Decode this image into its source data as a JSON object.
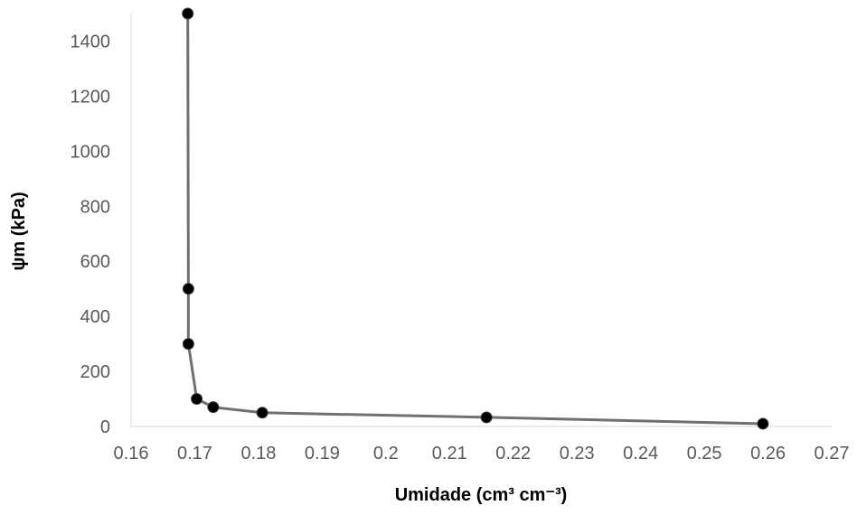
{
  "chart_data": {
    "type": "line",
    "title": "",
    "xlabel": "Umidade (cm³ cm⁻³)",
    "ylabel": "ψm (kPa)",
    "xlim": [
      0.16,
      0.27
    ],
    "ylim": [
      0,
      1500
    ],
    "x_ticks": [
      "0.16",
      "0.17",
      "0.18",
      "0.19",
      "0.2",
      "0.21",
      "0.22",
      "0.23",
      "0.24",
      "0.25",
      "0.26",
      "0.27"
    ],
    "y_ticks": [
      "0",
      "200",
      "400",
      "600",
      "800",
      "1000",
      "1200",
      "1400"
    ],
    "grid": false,
    "legend": "none",
    "series": [
      {
        "x": [
          0.1689,
          0.169,
          0.169,
          0.1703,
          0.1729,
          0.1806,
          0.2158,
          0.2592
        ],
        "y": [
          1500,
          500,
          300,
          100,
          70,
          50,
          33,
          10
        ]
      }
    ],
    "line_color": "#707070",
    "marker_color": "#000000"
  }
}
